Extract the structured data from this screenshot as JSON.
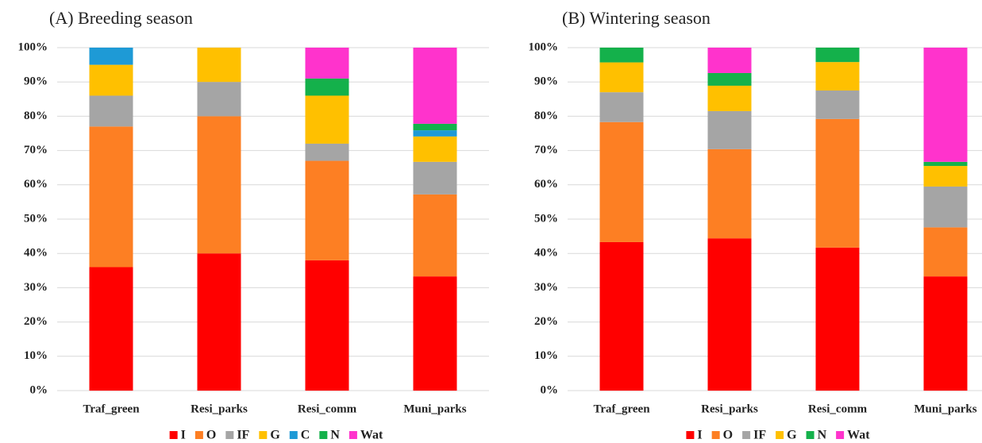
{
  "chart_data": [
    {
      "type": "stacked_bar",
      "title": "(A) Breeding season",
      "categories": [
        "Traf_green",
        "Resi_parks",
        "Resi_comm",
        "Muni_parks"
      ],
      "series": [
        {
          "name": "I",
          "color": "#ff0000",
          "values": [
            36,
            40,
            38,
            33.3
          ]
        },
        {
          "name": "O",
          "color": "#fd7f23",
          "values": [
            41,
            40,
            29,
            23.9
          ]
        },
        {
          "name": "IF",
          "color": "#a5a5a5",
          "values": [
            9,
            10,
            5,
            9.5
          ]
        },
        {
          "name": "G",
          "color": "#ffc000",
          "values": [
            9,
            10,
            14,
            7.4
          ]
        },
        {
          "name": "C",
          "color": "#1e9ad6",
          "values": [
            5,
            0,
            0,
            1.8
          ]
        },
        {
          "name": "N",
          "color": "#14b14b",
          "values": [
            0,
            0,
            5,
            1.9
          ]
        },
        {
          "name": "Wat",
          "color": "#ff33cc",
          "values": [
            0,
            0,
            9,
            22.2
          ]
        }
      ],
      "ylim": [
        0,
        100
      ],
      "yticks": [
        {
          "value": 0,
          "label": "0%"
        },
        {
          "value": 10,
          "label": "10%"
        },
        {
          "value": 20,
          "label": "20%"
        },
        {
          "value": 30,
          "label": "30%"
        },
        {
          "value": 40,
          "label": "40%"
        },
        {
          "value": 50,
          "label": "50%"
        },
        {
          "value": 60,
          "label": "60%"
        },
        {
          "value": 70,
          "label": "70%"
        },
        {
          "value": 80,
          "label": "80%"
        },
        {
          "value": 90,
          "label": "90%"
        },
        {
          "value": 100,
          "label": "100%"
        }
      ],
      "grid": true,
      "legend": "bottom"
    },
    {
      "type": "stacked_bar",
      "title": "(B) Wintering season",
      "categories": [
        "Traf_green",
        "Resi_parks",
        "Resi_comm",
        "Muni_parks"
      ],
      "series": [
        {
          "name": "I",
          "color": "#ff0000",
          "values": [
            43.3,
            44.4,
            41.7,
            33.3
          ]
        },
        {
          "name": "O",
          "color": "#fd7f23",
          "values": [
            35,
            26,
            37.5,
            14.3
          ]
        },
        {
          "name": "IF",
          "color": "#a5a5a5",
          "values": [
            8.7,
            11.1,
            8.3,
            11.9
          ]
        },
        {
          "name": "G",
          "color": "#ffc000",
          "values": [
            8.7,
            7.4,
            8.3,
            6
          ]
        },
        {
          "name": "N",
          "color": "#14b14b",
          "values": [
            4.3,
            3.7,
            4.2,
            1.2
          ]
        },
        {
          "name": "Wat",
          "color": "#ff33cc",
          "values": [
            0,
            7.4,
            0,
            33.3
          ]
        }
      ],
      "ylim": [
        0,
        100
      ],
      "yticks": [
        {
          "value": 0,
          "label": "0%"
        },
        {
          "value": 10,
          "label": "10%"
        },
        {
          "value": 20,
          "label": "20%"
        },
        {
          "value": 30,
          "label": "30%"
        },
        {
          "value": 40,
          "label": "40%"
        },
        {
          "value": 50,
          "label": "50%"
        },
        {
          "value": 60,
          "label": "60%"
        },
        {
          "value": 70,
          "label": "70%"
        },
        {
          "value": 80,
          "label": "80%"
        },
        {
          "value": 90,
          "label": "90%"
        },
        {
          "value": 100,
          "label": "100%"
        }
      ],
      "grid": true,
      "legend": "bottom"
    }
  ]
}
